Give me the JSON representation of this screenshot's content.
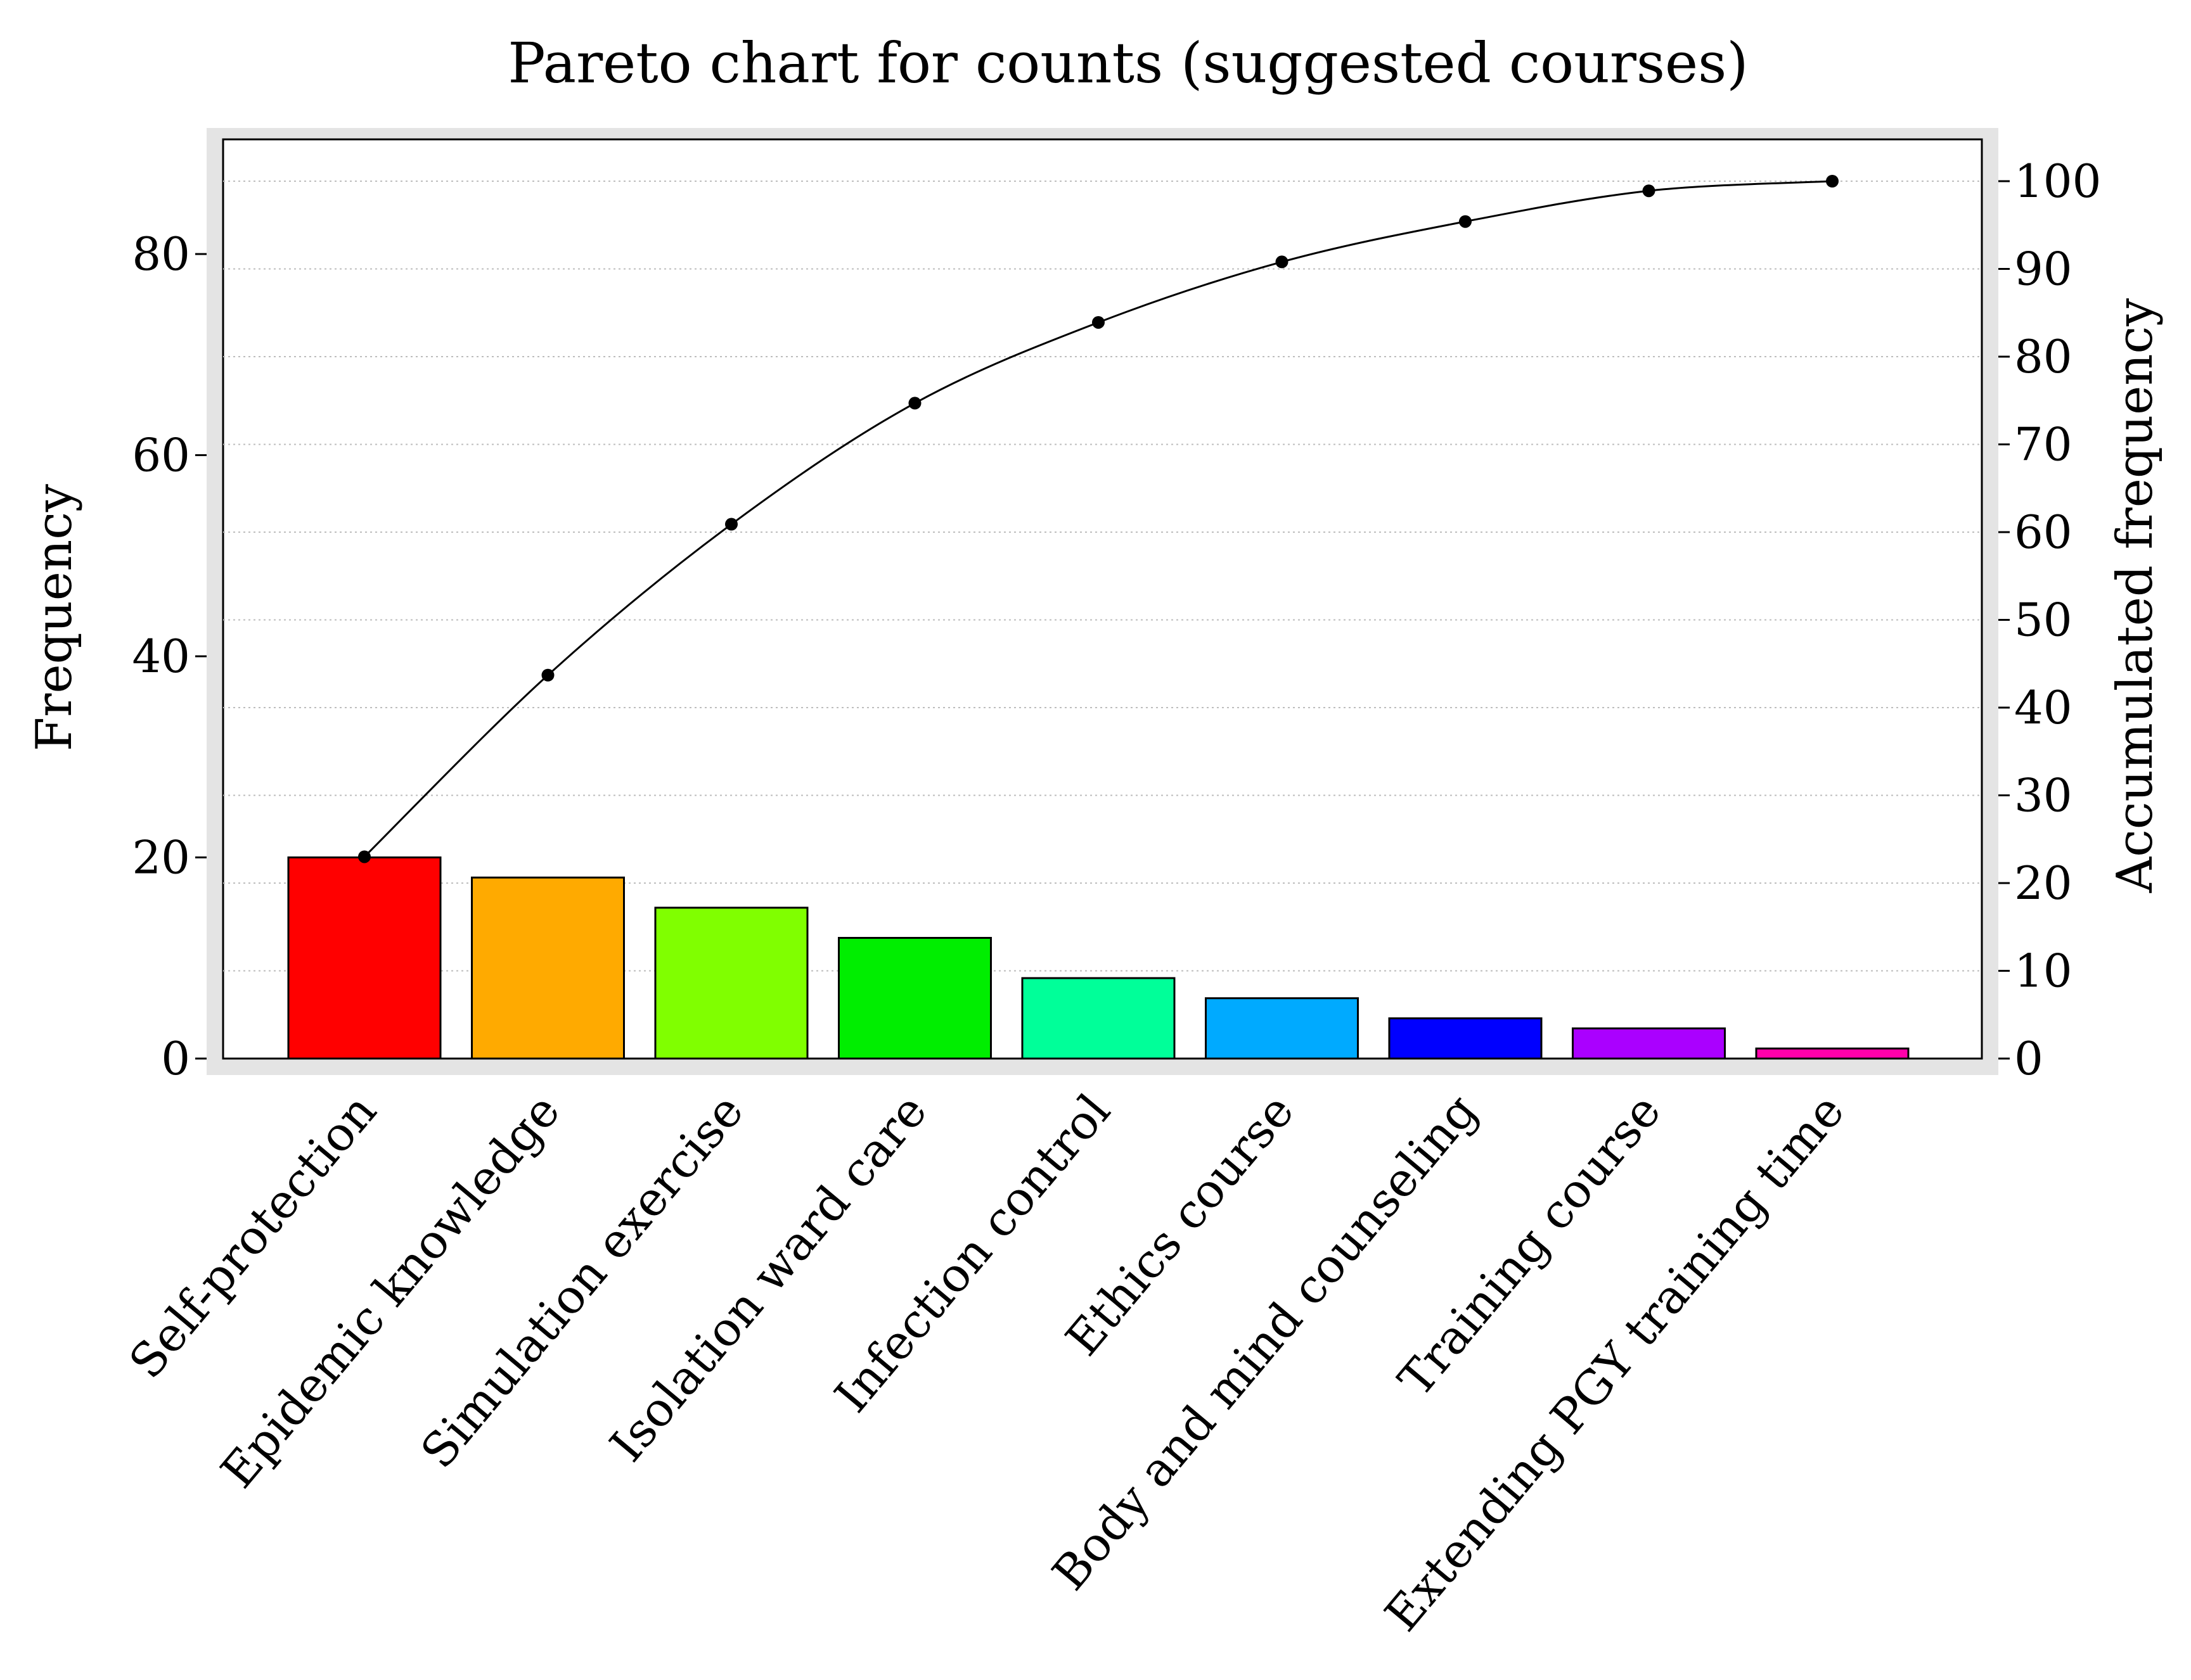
{
  "chart_data": {
    "type": "bar",
    "title": "Pareto chart for counts (suggested courses)",
    "ylabel": "Frequency",
    "ylabel_right": "Accumulated frequency",
    "categories": [
      "Self-protection",
      "Epidemic knowledge",
      "Simulation exercise",
      "Isolation ward care",
      "Infection control",
      "Ethics course",
      "Body and mind counseling",
      "Training course",
      "Extending PGY training time"
    ],
    "values": [
      20,
      18,
      15,
      12,
      8,
      6,
      4,
      3,
      1
    ],
    "colors": [
      "#ff0000",
      "#ffaa00",
      "#80ff00",
      "#00ee00",
      "#00ff99",
      "#00aaff",
      "#0000ff",
      "#aa00ff",
      "#ff00aa"
    ],
    "cumulative_percent": [
      23.0,
      43.7,
      60.9,
      74.7,
      83.9,
      90.8,
      95.4,
      98.9,
      100.0
    ],
    "ylim": [
      0,
      91.5
    ],
    "ylim_right": [
      0,
      105
    ],
    "yticks": [
      0,
      20,
      40,
      60,
      80
    ],
    "yticks_right": [
      0,
      10,
      20,
      30,
      40,
      50,
      60,
      70,
      80,
      90,
      100
    ],
    "grid": true,
    "grid_style": "dotted",
    "line_color": "#000000"
  }
}
